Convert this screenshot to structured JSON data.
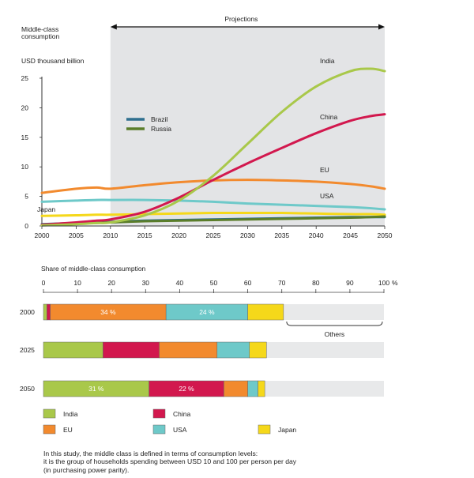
{
  "colors": {
    "India": "#a9c84a",
    "China": "#d2184e",
    "EU": "#f28a2e",
    "USA": "#6ec9c9",
    "Japan": "#f5d81a",
    "Brazil": "#2f6f8f",
    "Russia": "#5a7d2a",
    "projection_band": "#e3e4e6",
    "others_bar": "#e8e9ea"
  },
  "chart_data": [
    {
      "type": "line",
      "title": "Middle-class consumption",
      "title_lines": [
        "Middle-class",
        "consumption"
      ],
      "ylabel": "USD thousand billion",
      "ylim": [
        0,
        25
      ],
      "yticks": [
        0,
        5,
        10,
        15,
        20,
        25
      ],
      "xlim": [
        2000,
        2050
      ],
      "xticks": [
        2000,
        2005,
        2010,
        2015,
        2020,
        2025,
        2030,
        2035,
        2040,
        2045,
        2050
      ],
      "projection": {
        "label": "Projections",
        "from": 2010,
        "to": 2050
      },
      "x": [
        2000,
        2005,
        2008,
        2010,
        2015,
        2020,
        2025,
        2030,
        2035,
        2040,
        2045,
        2048,
        2050
      ],
      "series": [
        {
          "name": "EU",
          "label": "EU",
          "values": [
            5.6,
            6.3,
            6.5,
            6.3,
            6.9,
            7.4,
            7.7,
            7.8,
            7.7,
            7.5,
            7.1,
            6.7,
            6.3
          ]
        },
        {
          "name": "USA",
          "label": "USA",
          "values": [
            4.1,
            4.3,
            4.4,
            4.4,
            4.4,
            4.3,
            4.1,
            3.8,
            3.6,
            3.4,
            3.2,
            3.0,
            2.8
          ]
        },
        {
          "name": "Japan",
          "label": "Japan",
          "values": [
            1.7,
            1.8,
            1.9,
            1.9,
            2.0,
            2.1,
            2.2,
            2.2,
            2.2,
            2.1,
            2.0,
            2.0,
            1.9
          ]
        },
        {
          "name": "Brazil",
          "values": [
            0.3,
            0.5,
            0.6,
            0.7,
            0.9,
            1.0,
            1.1,
            1.2,
            1.3,
            1.4,
            1.5,
            1.5,
            1.5
          ]
        },
        {
          "name": "Russia",
          "values": [
            0.2,
            0.4,
            0.5,
            0.6,
            0.8,
            0.9,
            1.0,
            1.1,
            1.2,
            1.3,
            1.4,
            1.5,
            1.6
          ]
        },
        {
          "name": "China",
          "label": "China",
          "values": [
            0.2,
            0.6,
            0.9,
            1.1,
            2.4,
            4.8,
            7.8,
            10.6,
            13.2,
            15.7,
            17.8,
            18.6,
            18.9
          ]
        },
        {
          "name": "India",
          "label": "India",
          "values": [
            0.1,
            0.3,
            0.5,
            0.6,
            1.8,
            4.3,
            8.5,
            13.9,
            19.3,
            23.6,
            26.2,
            26.6,
            26.2
          ]
        }
      ],
      "legend": [
        {
          "name": "Brazil"
        },
        {
          "name": "Russia"
        }
      ]
    },
    {
      "type": "bar",
      "orientation": "horizontal",
      "stacked": true,
      "title": "Share of middle-class consumption",
      "xlim": [
        0,
        100
      ],
      "xticks": [
        0,
        10,
        20,
        30,
        40,
        50,
        60,
        70,
        80,
        90,
        100
      ],
      "x_unit": "%",
      "categories": [
        "2000",
        "2025",
        "2050"
      ],
      "series": [
        {
          "name": "India",
          "values": [
            1,
            17.5,
            31
          ],
          "data_labels": [
            "",
            "",
            "31 %"
          ]
        },
        {
          "name": "China",
          "values": [
            1,
            16.5,
            22
          ],
          "data_labels": [
            "",
            "",
            "22 %"
          ]
        },
        {
          "name": "EU",
          "values": [
            34,
            17,
            7
          ],
          "data_labels": [
            "34 %",
            "",
            ""
          ]
        },
        {
          "name": "USA",
          "values": [
            24,
            9.5,
            3
          ],
          "data_labels": [
            "24 %",
            "",
            ""
          ]
        },
        {
          "name": "Japan",
          "values": [
            10.5,
            5,
            2
          ],
          "data_labels": [
            "",
            "",
            ""
          ]
        }
      ],
      "others_label": "Others",
      "legend": [
        {
          "name": "India",
          "label": "India"
        },
        {
          "name": "China",
          "label": "China"
        },
        {
          "name": "EU",
          "label": "EU"
        },
        {
          "name": "USA",
          "label": "USA"
        },
        {
          "name": "Japan",
          "label": "Japan"
        }
      ]
    }
  ],
  "footnote": [
    "In this study, the middle class is defined in terms of consumption levels:",
    "it is the group of households spending between USD 10 and 100 per person per day",
    "(in purchasing power parity)."
  ]
}
